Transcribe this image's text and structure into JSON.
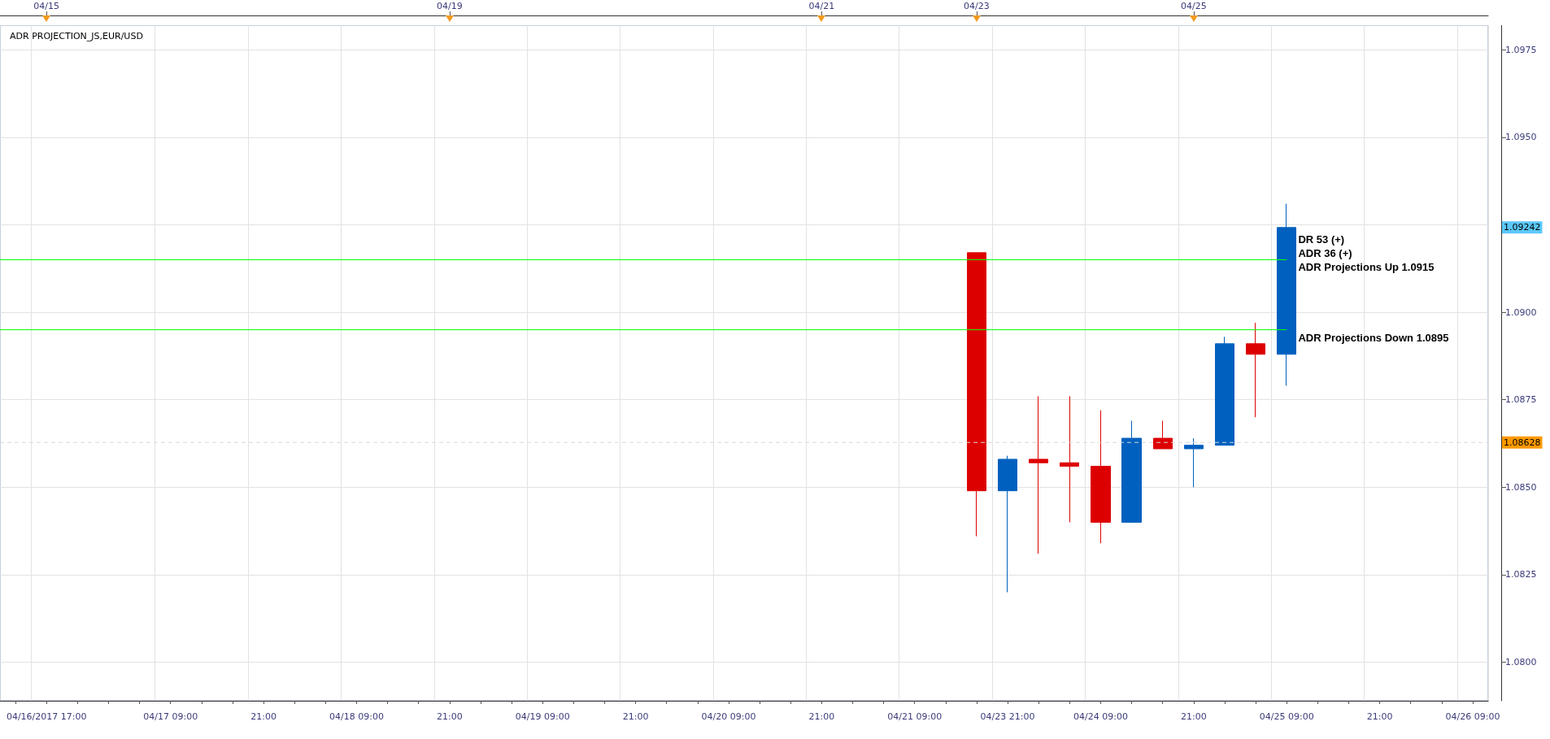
{
  "chart_data": [
    {
      "type": "other",
      "categories": [
        null,
        "04/15",
        null,
        null,
        null,
        null,
        null,
        null,
        null,
        null,
        null,
        null,
        null,
        null,
        "04/19",
        null,
        null,
        null,
        null,
        null,
        null,
        null,
        null,
        null,
        null,
        null,
        "04/21",
        null,
        null,
        null,
        null,
        "04/23",
        null,
        null,
        null,
        null,
        null,
        null,
        "04/25",
        null,
        null,
        null,
        null,
        null,
        null,
        null,
        null,
        null
      ]
    },
    {
      "type": "candlestick",
      "title": "ADR PROJECTION_JS,EUR/USD",
      "categories": [
        null,
        "04/16/2017 17:00",
        null,
        null,
        null,
        "04/17 09:00",
        null,
        null,
        "21:00",
        null,
        null,
        "04/18 09:00",
        null,
        null,
        "21:00",
        null,
        null,
        "04/19 09:00",
        null,
        null,
        "21:00",
        null,
        null,
        "04/20 09:00",
        null,
        null,
        "21:00",
        null,
        null,
        "04/21 09:00",
        null,
        null,
        "04/23 21:00",
        null,
        null,
        "04/24 09:00",
        null,
        null,
        "21:00",
        null,
        null,
        "04/25 09:00",
        null,
        null,
        "21:00",
        null,
        null,
        "04/26 09:00"
      ],
      "ohlc": [
        null,
        null,
        null,
        null,
        null,
        null,
        null,
        null,
        null,
        null,
        null,
        null,
        null,
        null,
        null,
        null,
        null,
        null,
        null,
        null,
        null,
        null,
        null,
        null,
        null,
        null,
        null,
        null,
        null,
        null,
        null,
        [
          1.0917,
          1.0917,
          1.0836,
          1.0849
        ],
        [
          1.0849,
          1.0859,
          1.082,
          1.0858
        ],
        [
          1.0858,
          1.0876,
          1.0831,
          1.0857
        ],
        [
          1.0857,
          1.0876,
          1.084,
          1.0856
        ],
        [
          1.0856,
          1.0872,
          1.0834,
          1.084
        ],
        [
          1.084,
          1.0869,
          1.084,
          1.0864
        ],
        [
          1.0864,
          1.0869,
          1.0861,
          1.0861
        ],
        [
          1.0861,
          1.0864,
          1.085,
          1.0862
        ],
        [
          1.0862,
          1.0893,
          1.0862,
          1.0891
        ],
        [
          1.0891,
          1.0897,
          1.087,
          1.0888
        ],
        [
          1.0888,
          1.0931,
          1.0879,
          1.09242
        ],
        null,
        null,
        null,
        null,
        null,
        null
      ],
      "colors": [
        null,
        null,
        null,
        null,
        null,
        null,
        null,
        null,
        null,
        null,
        null,
        null,
        null,
        null,
        null,
        null,
        null,
        null,
        null,
        null,
        null,
        null,
        null,
        null,
        null,
        null,
        null,
        null,
        null,
        null,
        null,
        "#dd0000",
        "#0060bf",
        "#dd0000",
        "#dd0000",
        "#dd0000",
        "#0060bf",
        "#dd0000",
        "#0060bf",
        "#0060bf",
        "#dd0000",
        "#0060bf",
        null,
        null,
        null,
        null,
        null,
        null
      ],
      "ylim": [
        1.0789,
        1.0982
      ],
      "yticks": [
        {
          "value": 1.08,
          "label": "1.0800"
        },
        1.0825,
        {
          "value": 1.085,
          "label": "1.0850"
        },
        1.0875,
        {
          "value": 1.09,
          "label": "1.0900"
        },
        {
          "value": 1.0925,
          "label": null
        },
        {
          "value": 1.095,
          "label": "1.0950"
        },
        1.0975
      ],
      "grid": true,
      "ref_lines": [
        {
          "axis": "y",
          "value": 1.0915,
          "label": "ADR Projections Up 1.0915",
          "color": "#00ff00"
        },
        {
          "axis": "y",
          "value": 1.0895,
          "label": "ADR Projections Down 1.0895",
          "color": "#00ff00"
        },
        {
          "axis": "y",
          "value": 1.08628,
          "label": "1.08628",
          "color": "#d8d8d8",
          "line_style": "dashed"
        }
      ],
      "annotations": [
        "DR 53 (+)",
        "ADR 36 (+)",
        "1.09242"
      ]
    }
  ]
}
